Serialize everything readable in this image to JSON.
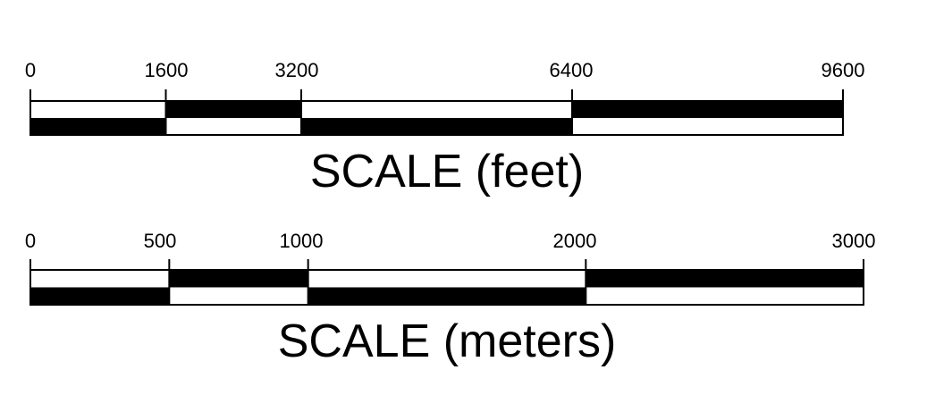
{
  "scales": [
    {
      "title": "SCALE (feet)",
      "unit": "feet",
      "max": 9600,
      "ticks": [
        {
          "value": 0,
          "label": "0"
        },
        {
          "value": 1600,
          "label": "1600"
        },
        {
          "value": 3200,
          "label": "3200"
        },
        {
          "value": 6400,
          "label": "6400"
        },
        {
          "value": 9600,
          "label": "9600"
        }
      ]
    },
    {
      "title": "SCALE (meters)",
      "unit": "meters",
      "max": 3000,
      "ticks": [
        {
          "value": 0,
          "label": "0"
        },
        {
          "value": 500,
          "label": "500"
        },
        {
          "value": 1000,
          "label": "1000"
        },
        {
          "value": 2000,
          "label": "2000"
        },
        {
          "value": 3000,
          "label": "3000"
        }
      ]
    }
  ],
  "colors": {
    "bar_fill": "#000000",
    "bar_background": "#ffffff",
    "outline": "#000000",
    "text": "#000000"
  }
}
